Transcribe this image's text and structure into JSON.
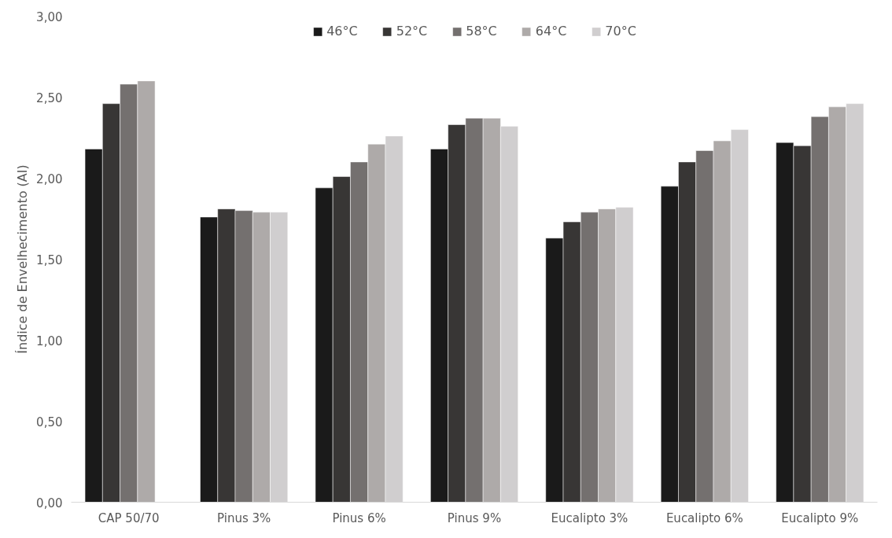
{
  "chart_data": {
    "type": "bar",
    "ylabel": "Índice de Envelhecimento (AI)",
    "categories": [
      "CAP 50/70",
      "Pinus 3%",
      "Pinus 6%",
      "Pinus 9%",
      "Eucalipto 3%",
      "Eucalipto 6%",
      "Eucalipto 9%"
    ],
    "series": [
      {
        "name": "46°C",
        "color": "#1a1a1a",
        "values": [
          2.18,
          1.76,
          1.94,
          2.18,
          1.63,
          1.95,
          2.22
        ]
      },
      {
        "name": "52°C",
        "color": "#383635",
        "values": [
          2.46,
          1.81,
          2.01,
          2.33,
          1.73,
          2.1,
          2.2
        ]
      },
      {
        "name": "58°C",
        "color": "#74706f",
        "values": [
          2.58,
          1.8,
          2.1,
          2.37,
          1.79,
          2.17,
          2.38
        ]
      },
      {
        "name": "64°C",
        "color": "#aeaaa9",
        "values": [
          2.6,
          1.79,
          2.21,
          2.37,
          1.81,
          2.23,
          2.44
        ]
      },
      {
        "name": "70°C",
        "color": "#d0cecf",
        "values": [
          null,
          1.79,
          2.26,
          2.32,
          1.82,
          2.3,
          2.46
        ]
      }
    ],
    "ylim": [
      0,
      3
    ],
    "yticks": [
      {
        "value": 0,
        "label": "0,00"
      },
      {
        "value": 0.5,
        "label": "0,50"
      },
      {
        "value": 1,
        "label": "1,00"
      },
      {
        "value": 1.5,
        "label": "1,50"
      },
      {
        "value": 2,
        "label": "2,00"
      },
      {
        "value": 2.5,
        "label": "2,50"
      },
      {
        "value": 3,
        "label": "3,00"
      }
    ],
    "grid": false,
    "legend": "top"
  }
}
